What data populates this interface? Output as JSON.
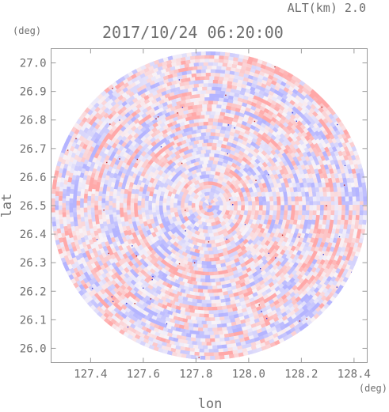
{
  "chart_data": {
    "type": "heatmap",
    "title": "2017/10/24 06:20:00",
    "subtitle": "ALT(km) 2.0",
    "xlabel": "lon",
    "ylabel": "lat",
    "x_unit": "(deg)",
    "y_unit": "(deg)",
    "xlim": [
      127.25,
      128.45
    ],
    "ylim": [
      25.95,
      27.05
    ],
    "xticks": [
      "127.4",
      "127.6",
      "127.8",
      "128.0",
      "128.2",
      "128.4"
    ],
    "yticks": [
      "26.0",
      "26.1",
      "26.2",
      "26.3",
      "26.4",
      "26.5",
      "26.6",
      "26.7",
      "26.8",
      "26.9",
      "27.0"
    ],
    "field": {
      "center": [
        127.85,
        26.5
      ],
      "radius_lon": 0.6,
      "radius_lat": 0.54,
      "colors": {
        "negative": "#b4b4ff",
        "neutral": "#f8f4f8",
        "positive": "#ffa8a8"
      }
    },
    "grid": false
  }
}
